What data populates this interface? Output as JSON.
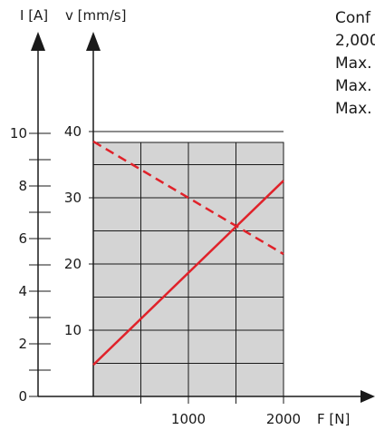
{
  "chart_data": {
    "type": "line",
    "x": [
      0,
      2000
    ],
    "xlabel": "F [N]",
    "x_tick_labels": [
      "1000",
      "2000"
    ],
    "xlim": [
      0,
      2000
    ],
    "ylabel_left": "I [A]",
    "ylabel_right": "v [mm/s]",
    "y_left_tick_labels": [
      "0",
      "2",
      "4",
      "6",
      "8",
      "10"
    ],
    "y_right_tick_labels": [
      "10",
      "20",
      "30",
      "40"
    ],
    "y_left_lim": [
      0,
      10
    ],
    "y_right_lim": [
      0,
      42.3
    ],
    "series": [
      {
        "axis": "left (I [A])",
        "style": "solid",
        "color": "#e0222a",
        "values": [
          1.2,
          8.2
        ]
      },
      {
        "axis": "right (v [mm/s])",
        "style": "dashed",
        "color": "#e0222a",
        "values": [
          38.5,
          21.5
        ]
      }
    ],
    "shaded_region": {
      "x": [
        0,
        2000
      ],
      "color": "#d4d4d4"
    },
    "grid": true
  },
  "side_text": [
    "Conf",
    "2,000",
    "Max.",
    "Max.",
    "Max."
  ]
}
